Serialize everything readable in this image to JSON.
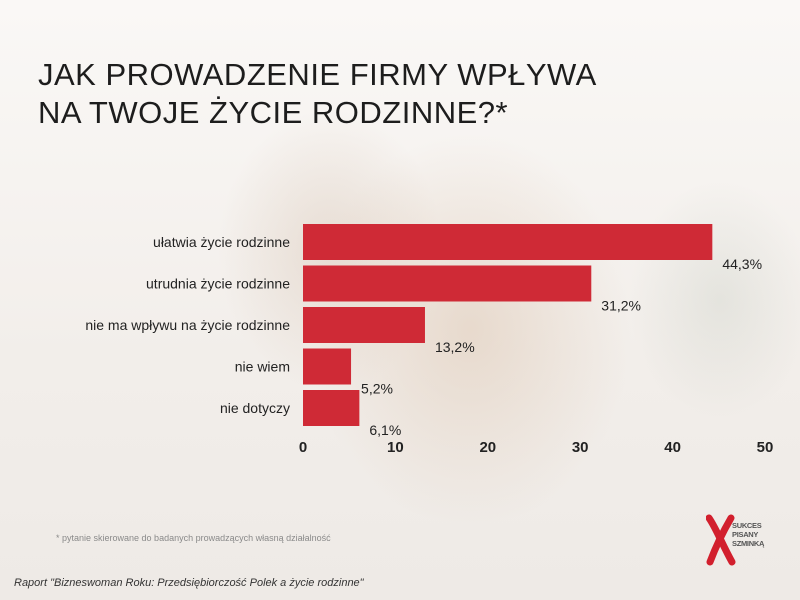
{
  "title": {
    "line1": "JAK PROWADZENIE FIRMY WPŁYWA",
    "line2": "NA TWOJE ŻYCIE RODZINNE?*"
  },
  "footnote": "* pytanie skierowane do badanych  prowadzących własną działalność",
  "source": "Raport \"Bizneswoman Roku: Przedsiębiorczość Polek a życie rodzinne\"",
  "logo": {
    "lines": [
      "SUKCES",
      "PISANY",
      "SZMINKĄ"
    ],
    "mark_color": "#d21f2d"
  },
  "chart_data": {
    "type": "bar",
    "orientation": "horizontal",
    "categories": [
      "ułatwia życie rodzinne",
      "utrudnia życie rodzinne",
      "nie ma wpływu na życie rodzinne",
      "nie wiem",
      "nie dotyczy"
    ],
    "values": [
      44.3,
      31.2,
      13.2,
      5.2,
      6.1
    ],
    "value_labels": [
      "44,3%",
      "31,2%",
      "13,2%",
      "5,2%",
      "6,1%"
    ],
    "xlim": [
      0,
      50
    ],
    "xticks": [
      "0",
      "10",
      "20",
      "30",
      "40",
      "50"
    ],
    "grid": false,
    "bar_color": "#cf2a36",
    "legend": "none"
  }
}
